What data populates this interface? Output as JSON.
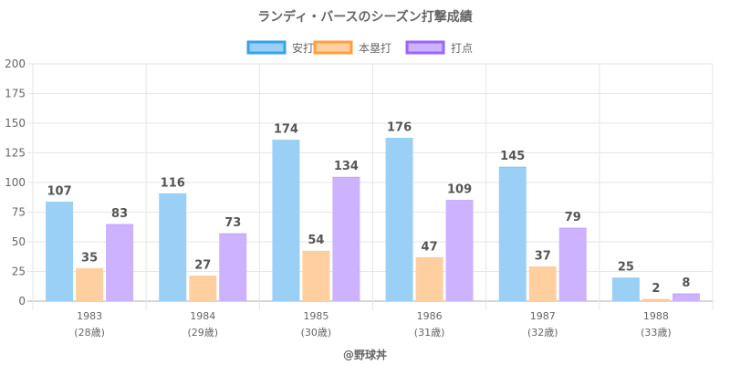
{
  "chart_data": {
    "type": "bar",
    "title": "ランディ・バースのシーズン打撃成績",
    "categories": [
      "1983",
      "1984",
      "1985",
      "1986",
      "1987",
      "1988"
    ],
    "category_sublabels": [
      "(28歳)",
      "(29歳)",
      "(30歳)",
      "(31歳)",
      "(32歳)",
      "(33歳)"
    ],
    "series": [
      {
        "name": "安打",
        "values": [
          107,
          116,
          174,
          176,
          145,
          25
        ],
        "fill": "#9ad0f5",
        "border": "#36a2eb"
      },
      {
        "name": "本塁打",
        "values": [
          35,
          27,
          54,
          47,
          37,
          2
        ],
        "fill": "#ffcf9f",
        "border": "#ff9f40"
      },
      {
        "name": "打点",
        "values": [
          83,
          73,
          134,
          109,
          79,
          8
        ],
        "fill": "#ccb2ff",
        "border": "#9966ff"
      }
    ],
    "bar_fill_fraction": 0.78,
    "xlabel": "",
    "ylabel": "",
    "ylim": [
      0,
      200
    ],
    "yticks": [
      0,
      25,
      50,
      75,
      100,
      125,
      150,
      175,
      200
    ],
    "grid": true,
    "legend_position": "top",
    "credit": "@野球丼"
  }
}
